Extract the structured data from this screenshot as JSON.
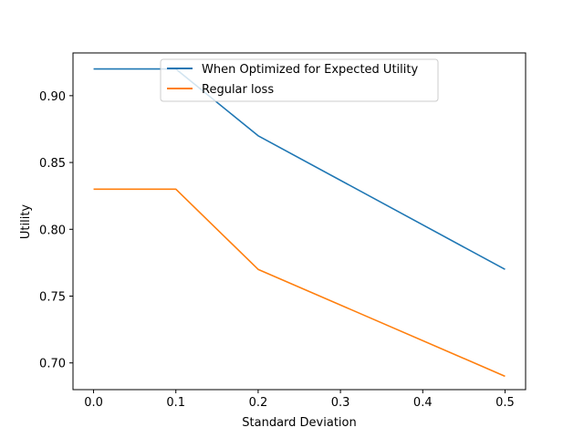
{
  "chart_data": {
    "type": "line",
    "xlabel": "Standard Deviation",
    "ylabel": "Utility",
    "xlim": [
      -0.025,
      0.525
    ],
    "ylim": [
      0.68,
      0.932
    ],
    "xticks": [
      "0.0",
      "0.1",
      "0.2",
      "0.3",
      "0.4",
      "0.5"
    ],
    "yticks": [
      "0.70",
      "0.75",
      "0.80",
      "0.85",
      "0.90"
    ],
    "grid": false,
    "legend_position": "upper center",
    "x": [
      0.0,
      0.1,
      0.2,
      0.5
    ],
    "series": [
      {
        "name": "When Optimized for Expected Utility",
        "color": "#1f77b4",
        "values": [
          0.92,
          0.92,
          0.87,
          0.77
        ]
      },
      {
        "name": "Regular loss",
        "color": "#ff7f0e",
        "values": [
          0.83,
          0.83,
          0.77,
          0.69
        ]
      }
    ]
  }
}
